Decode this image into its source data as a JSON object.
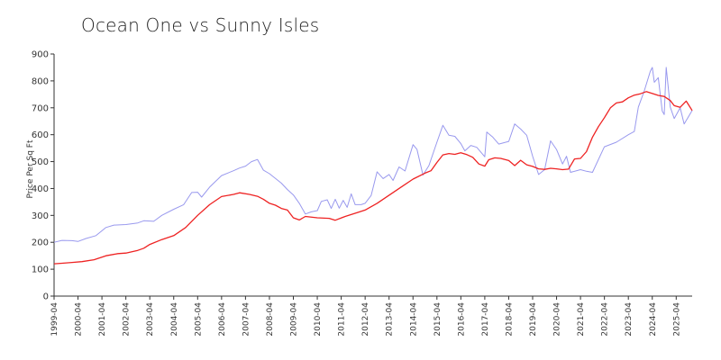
{
  "chart_data": {
    "type": "line",
    "title": "Ocean One vs Sunny Isles",
    "xlabel": "",
    "ylabel": "Price Per Sq Ft",
    "ylim": [
      0,
      900
    ],
    "yticks": [
      0,
      100,
      200,
      300,
      400,
      500,
      600,
      700,
      800,
      900
    ],
    "xticks": [
      "1999-04",
      "2000-04",
      "2001-04",
      "2002-04",
      "2003-04",
      "2004-04",
      "2005-04",
      "2006-04",
      "2007-04",
      "2008-04",
      "2009-04",
      "2010-04",
      "2011-04",
      "2012-04",
      "2013-04",
      "2014-04",
      "2015-04",
      "2016-04",
      "2017-04",
      "2018-04",
      "2019-04",
      "2020-04",
      "2021-04",
      "2022-04",
      "2023-04",
      "2024-04",
      "2025-04"
    ],
    "xlim": [
      "1999-04",
      "2025-12"
    ],
    "grid": false,
    "legend": "none",
    "series": [
      {
        "color": "#9999ee",
        "points": [
          [
            "1999-04",
            200
          ],
          [
            "1999-08",
            207
          ],
          [
            "2000-01",
            206
          ],
          [
            "2000-04",
            203
          ],
          [
            "2000-08",
            214
          ],
          [
            "2001-01",
            225
          ],
          [
            "2001-06",
            255
          ],
          [
            "2001-10",
            264
          ],
          [
            "2002-04",
            266
          ],
          [
            "2002-10",
            272
          ],
          [
            "2003-01",
            280
          ],
          [
            "2003-06",
            278
          ],
          [
            "2003-10",
            300
          ],
          [
            "2004-04",
            323
          ],
          [
            "2004-09",
            340
          ],
          [
            "2005-01",
            385
          ],
          [
            "2005-04",
            386
          ],
          [
            "2005-06",
            368
          ],
          [
            "2005-10",
            405
          ],
          [
            "2006-04",
            448
          ],
          [
            "2006-10",
            466
          ],
          [
            "2007-01",
            476
          ],
          [
            "2007-04",
            483
          ],
          [
            "2007-07",
            500
          ],
          [
            "2007-10",
            508
          ],
          [
            "2008-01",
            468
          ],
          [
            "2008-04",
            455
          ],
          [
            "2008-10",
            420
          ],
          [
            "2009-01",
            396
          ],
          [
            "2009-04",
            376
          ],
          [
            "2009-07",
            345
          ],
          [
            "2009-10",
            305
          ],
          [
            "2010-01",
            313
          ],
          [
            "2010-04",
            318
          ],
          [
            "2010-06",
            352
          ],
          [
            "2010-09",
            358
          ],
          [
            "2010-11",
            326
          ],
          [
            "2011-01",
            360
          ],
          [
            "2011-03",
            327
          ],
          [
            "2011-05",
            356
          ],
          [
            "2011-07",
            330
          ],
          [
            "2011-09",
            380
          ],
          [
            "2011-11",
            340
          ],
          [
            "2012-02",
            340
          ],
          [
            "2012-04",
            345
          ],
          [
            "2012-07",
            374
          ],
          [
            "2012-10",
            462
          ],
          [
            "2013-01",
            437
          ],
          [
            "2013-04",
            452
          ],
          [
            "2013-06",
            430
          ],
          [
            "2013-09",
            480
          ],
          [
            "2013-12",
            465
          ],
          [
            "2014-04",
            563
          ],
          [
            "2014-06",
            545
          ],
          [
            "2014-09",
            450
          ],
          [
            "2014-12",
            485
          ],
          [
            "2015-04",
            572
          ],
          [
            "2015-07",
            635
          ],
          [
            "2015-10",
            598
          ],
          [
            "2016-01",
            594
          ],
          [
            "2016-04",
            567
          ],
          [
            "2016-06",
            540
          ],
          [
            "2016-09",
            560
          ],
          [
            "2016-12",
            553
          ],
          [
            "2017-04",
            518
          ],
          [
            "2017-05",
            610
          ],
          [
            "2017-08",
            591
          ],
          [
            "2017-11",
            565
          ],
          [
            "2018-04",
            575
          ],
          [
            "2018-07",
            640
          ],
          [
            "2018-10",
            621
          ],
          [
            "2019-01",
            598
          ],
          [
            "2019-04",
            520
          ],
          [
            "2019-07",
            452
          ],
          [
            "2019-10",
            470
          ],
          [
            "2020-01",
            577
          ],
          [
            "2020-04",
            545
          ],
          [
            "2020-07",
            491
          ],
          [
            "2020-09",
            520
          ],
          [
            "2020-11",
            460
          ],
          [
            "2021-04",
            470
          ],
          [
            "2021-07",
            464
          ],
          [
            "2021-10",
            460
          ],
          [
            "2022-04",
            555
          ],
          [
            "2022-10",
            572
          ],
          [
            "2023-04",
            600
          ],
          [
            "2023-07",
            612
          ],
          [
            "2023-09",
            703
          ],
          [
            "2023-12",
            763
          ],
          [
            "2024-03",
            835
          ],
          [
            "2024-04",
            850
          ],
          [
            "2024-05",
            795
          ],
          [
            "2024-07",
            812
          ],
          [
            "2024-09",
            688
          ],
          [
            "2024-10",
            675
          ],
          [
            "2024-11",
            850
          ],
          [
            "2025-01",
            703
          ],
          [
            "2025-03",
            660
          ],
          [
            "2025-06",
            700
          ],
          [
            "2025-08",
            640
          ],
          [
            "2025-12",
            690
          ]
        ]
      },
      {
        "color": "#ee2222",
        "points": [
          [
            "1999-04",
            120
          ],
          [
            "1999-08",
            122
          ],
          [
            "2000-01",
            125
          ],
          [
            "2000-06",
            128
          ],
          [
            "2000-12",
            135
          ],
          [
            "2001-06",
            150
          ],
          [
            "2001-12",
            158
          ],
          [
            "2002-04",
            160
          ],
          [
            "2002-10",
            170
          ],
          [
            "2003-01",
            178
          ],
          [
            "2003-04",
            192
          ],
          [
            "2003-10",
            210
          ],
          [
            "2004-04",
            225
          ],
          [
            "2004-10",
            255
          ],
          [
            "2005-04",
            300
          ],
          [
            "2005-10",
            340
          ],
          [
            "2006-04",
            370
          ],
          [
            "2006-10",
            378
          ],
          [
            "2007-01",
            384
          ],
          [
            "2007-06",
            378
          ],
          [
            "2007-10",
            371
          ],
          [
            "2008-01",
            360
          ],
          [
            "2008-04",
            345
          ],
          [
            "2008-07",
            338
          ],
          [
            "2008-10",
            326
          ],
          [
            "2009-01",
            320
          ],
          [
            "2009-04",
            291
          ],
          [
            "2009-07",
            283
          ],
          [
            "2009-10",
            296
          ],
          [
            "2010-04",
            291
          ],
          [
            "2010-10",
            289
          ],
          [
            "2011-01",
            282
          ],
          [
            "2011-06",
            296
          ],
          [
            "2011-12",
            310
          ],
          [
            "2012-04",
            320
          ],
          [
            "2012-10",
            345
          ],
          [
            "2013-04",
            375
          ],
          [
            "2013-10",
            405
          ],
          [
            "2014-04",
            435
          ],
          [
            "2014-10",
            457
          ],
          [
            "2015-01",
            466
          ],
          [
            "2015-04",
            497
          ],
          [
            "2015-07",
            525
          ],
          [
            "2015-10",
            530
          ],
          [
            "2016-01",
            527
          ],
          [
            "2016-04",
            533
          ],
          [
            "2016-07",
            526
          ],
          [
            "2016-10",
            516
          ],
          [
            "2017-01",
            491
          ],
          [
            "2017-04",
            483
          ],
          [
            "2017-06",
            507
          ],
          [
            "2017-09",
            514
          ],
          [
            "2017-12",
            512
          ],
          [
            "2018-04",
            504
          ],
          [
            "2018-07",
            485
          ],
          [
            "2018-10",
            505
          ],
          [
            "2019-01",
            488
          ],
          [
            "2019-04",
            482
          ],
          [
            "2019-07",
            473
          ],
          [
            "2019-10",
            471
          ],
          [
            "2020-01",
            475
          ],
          [
            "2020-04",
            473
          ],
          [
            "2020-07",
            470
          ],
          [
            "2020-10",
            472
          ],
          [
            "2021-01",
            510
          ],
          [
            "2021-04",
            512
          ],
          [
            "2021-07",
            537
          ],
          [
            "2021-10",
            591
          ],
          [
            "2022-01",
            630
          ],
          [
            "2022-04",
            663
          ],
          [
            "2022-07",
            700
          ],
          [
            "2022-10",
            718
          ],
          [
            "2023-01",
            722
          ],
          [
            "2023-04",
            737
          ],
          [
            "2023-07",
            747
          ],
          [
            "2023-10",
            752
          ],
          [
            "2024-01",
            760
          ],
          [
            "2024-04",
            753
          ],
          [
            "2024-07",
            746
          ],
          [
            "2024-10",
            742
          ],
          [
            "2025-01",
            727
          ],
          [
            "2025-03",
            708
          ],
          [
            "2025-06",
            702
          ],
          [
            "2025-09",
            725
          ],
          [
            "2025-12",
            690
          ]
        ]
      }
    ]
  }
}
